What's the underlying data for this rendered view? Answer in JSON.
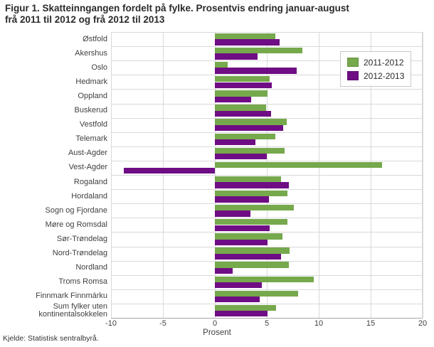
{
  "figure": {
    "title_lines": [
      "Figur 1. Skatteinngangen fordelt på fylke. Prosentvis endring januar-august",
      "frå 2011 til 2012 og frå 2012 til 2013"
    ],
    "source": "Kjelde: Statistisk sentralbyrå."
  },
  "chart_data": {
    "type": "bar",
    "orientation": "horizontal",
    "title": "Figur 1. Skatteinngangen fordelt på fylke. Prosentvis endring januar-august frå 2011 til 2012 og frå 2012 til 2013",
    "xlabel": "Prosent",
    "xlim": [
      -10,
      20
    ],
    "xticks": [
      -10,
      -5,
      0,
      5,
      10,
      15,
      20
    ],
    "grid": true,
    "legend_position": "top-right",
    "categories": [
      "Østfold",
      "Akershus",
      "Oslo",
      "Hedmark",
      "Oppland",
      "Buskerud",
      "Vestfold",
      "Telemark",
      "Aust-Agder",
      "Vest-Agder",
      "Rogaland",
      "Hordaland",
      "Sogn og Fjordane",
      "Møre og Romsdal",
      "Sør-Trøndelag",
      "Nord-Trøndelag",
      "Nordland",
      "Troms Romsa",
      "Finnmark Finnmárku",
      "Sum fylker uten kontinentalsokkelen"
    ],
    "series": [
      {
        "name": "2011-2012",
        "color": "#76a84c",
        "values": [
          5.8,
          8.4,
          1.2,
          5.3,
          5.1,
          4.9,
          6.9,
          5.8,
          6.7,
          16.1,
          6.4,
          7.0,
          7.6,
          7.0,
          6.5,
          7.2,
          7.1,
          9.5,
          8.0,
          5.9
        ]
      },
      {
        "name": "2012-2013",
        "color": "#6f0d84",
        "values": [
          6.2,
          4.1,
          7.9,
          5.5,
          3.5,
          5.4,
          6.6,
          3.9,
          5.0,
          -8.8,
          7.1,
          5.2,
          3.4,
          5.3,
          5.1,
          6.4,
          1.7,
          4.5,
          4.3,
          5.1
        ]
      }
    ],
    "source": "Kjelde: Statistisk sentralbyrå."
  }
}
